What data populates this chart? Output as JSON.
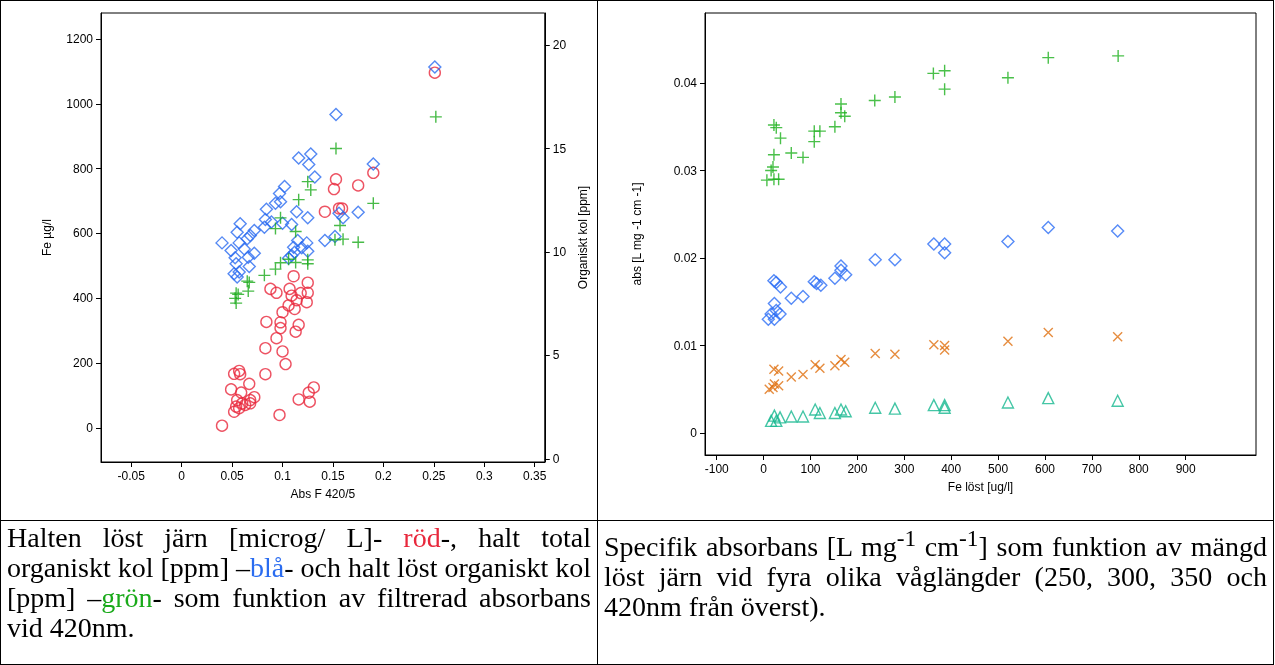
{
  "chart_data": [
    {
      "type": "scatter",
      "xlabel": "Abs F 420/5",
      "ylabel": "Fe µg/l",
      "y2label": "Organiskt kol [ppm]",
      "xlim": [
        -0.08,
        0.36
      ],
      "xticks": [
        -0.05,
        0,
        0.05,
        0.1,
        0.15,
        0.2,
        0.25,
        0.3,
        0.35
      ],
      "ylim": [
        -105,
        1280
      ],
      "yticks": [
        0,
        200,
        400,
        600,
        800,
        1000,
        1200
      ],
      "y2lim": [
        -0.15,
        21.55
      ],
      "y2ticks": [
        0,
        5,
        10,
        15,
        20
      ],
      "grid": false,
      "series": [
        {
          "color": "#e8283c",
          "marker": "circle",
          "x": [
            0.251,
            0.153,
            0.151,
            0.175,
            0.19,
            0.142,
            0.156,
            0.159,
            0.111,
            0.088,
            0.094,
            0.107,
            0.125,
            0.109,
            0.118,
            0.125,
            0.114,
            0.106,
            0.112,
            0.124,
            0.1,
            0.084,
            0.098,
            0.098,
            0.116,
            0.113,
            0.094,
            0.083,
            0.1,
            0.103,
            0.083,
            0.057,
            0.052,
            0.058,
            0.067,
            0.049,
            0.059,
            0.072,
            0.068,
            0.055,
            0.06,
            0.054,
            0.063,
            0.052,
            0.057,
            0.068,
            0.131,
            0.126,
            0.116,
            0.127,
            0.097,
            0.04
          ],
          "values": [
            1096,
            767,
            737,
            748,
            787,
            667,
            677,
            677,
            468,
            429,
            417,
            429,
            448,
            408,
            416,
            417,
            394,
            378,
            367,
            388,
            357,
            327,
            326,
            308,
            318,
            297,
            277,
            246,
            236,
            197,
            166,
            176,
            167,
            166,
            136,
            119,
            109,
            95,
            86,
            86,
            76,
            66,
            71,
            50,
            61,
            76,
            125,
            109,
            88,
            81,
            40,
            7
          ]
        },
        {
          "color": "#2a6cf0",
          "marker": "diamond",
          "axis": "y2",
          "x": [
            0.251,
            0.153,
            0.116,
            0.128,
            0.126,
            0.19,
            0.132,
            0.102,
            0.097,
            0.098,
            0.093,
            0.084,
            0.114,
            0.175,
            0.156,
            0.16,
            0.125,
            0.083,
            0.089,
            0.1,
            0.109,
            0.082,
            0.058,
            0.055,
            0.072,
            0.068,
            0.065,
            0.04,
            0.057,
            0.049,
            0.062,
            0.072,
            0.053,
            0.066,
            0.067,
            0.054,
            0.052,
            0.057,
            0.055,
            0.115,
            0.124,
            0.111,
            0.119,
            0.125,
            0.112,
            0.109,
            0.106,
            0.142,
            0.152
          ],
          "values": [
            18.94,
            16.64,
            14.54,
            14.73,
            14.23,
            14.25,
            13.62,
            13.16,
            12.83,
            12.43,
            12.35,
            12.06,
            11.94,
            11.92,
            11.87,
            11.65,
            11.65,
            11.57,
            11.45,
            11.39,
            11.33,
            11.2,
            11.36,
            10.95,
            11.04,
            10.8,
            10.64,
            10.44,
            10.44,
            10.07,
            10.15,
            9.94,
            9.72,
            9.75,
            9.3,
            9.43,
            8.95,
            9.03,
            8.79,
            10.55,
            10.44,
            10.23,
            10.2,
            10.04,
            9.99,
            9.83,
            9.7,
            10.55,
            10.75
          ]
        },
        {
          "color": "#1aaa1a",
          "marker": "plus",
          "axis": "y2",
          "x": [
            0.252,
            0.153,
            0.125,
            0.128,
            0.116,
            0.19,
            0.098,
            0.093,
            0.113,
            0.157,
            0.152,
            0.16,
            0.175,
            0.125,
            0.125,
            0.113,
            0.098,
            0.093,
            0.082,
            0.065,
            0.067,
            0.066,
            0.054,
            0.056,
            0.053,
            0.054,
            0.106
          ],
          "values": [
            16.53,
            15.0,
            13.4,
            13.0,
            12.53,
            12.35,
            11.65,
            11.13,
            10.99,
            11.28,
            10.59,
            10.62,
            10.47,
            9.62,
            9.43,
            9.49,
            9.48,
            9.17,
            8.87,
            8.59,
            8.53,
            8.11,
            8.01,
            7.95,
            7.76,
            7.53,
            9.65
          ]
        }
      ],
      "annotations": [
        "Halten löst järn [microg/ L]- ",
        "röd",
        "-, halt total organiskt kol [ppm] –",
        "blå",
        "- och halt löst organiskt kol [ppm] –",
        "grön",
        "- som funktion av filtrerad absorbans vid 420nm."
      ]
    },
    {
      "type": "scatter",
      "xlabel": "Fe löst [ug/l]",
      "ylabel": "abs [L mg -1 cm -1]",
      "xlim": [
        -125,
        1050
      ],
      "xticks": [
        -100,
        0,
        100,
        200,
        300,
        400,
        500,
        600,
        700,
        800,
        900
      ],
      "ylim": [
        -0.0025,
        0.048
      ],
      "yticks": [
        0,
        0.01,
        0.02,
        0.03,
        0.04
      ],
      "grid": false,
      "series": [
        {
          "color": "#1db01d",
          "marker": "plus",
          "x": [
            22,
            27,
            36,
            22,
            59,
            84,
            108,
            108,
            120,
            152,
            165,
            165,
            173,
            237,
            280,
            362,
            386,
            386,
            521,
            607,
            756,
            16,
            20,
            22,
            7,
            32
          ],
          "values": [
            0.0352,
            0.0349,
            0.0337,
            0.0318,
            0.032,
            0.0315,
            0.0333,
            0.0345,
            0.0345,
            0.035,
            0.0376,
            0.0366,
            0.0362,
            0.038,
            0.0384,
            0.0411,
            0.0414,
            0.0393,
            0.0406,
            0.0429,
            0.0431,
            0.03,
            0.0304,
            0.029,
            0.0289,
            0.029
          ]
        },
        {
          "color": "#2d6ef5",
          "marker": "diamond",
          "x": [
            22,
            27,
            36,
            23,
            59,
            84,
            108,
            113,
            122,
            152,
            165,
            165,
            175,
            238,
            280,
            363,
            386,
            386,
            521,
            607,
            755,
            10,
            23,
            16,
            27,
            35
          ],
          "values": [
            0.0174,
            0.0172,
            0.0167,
            0.0148,
            0.0154,
            0.0156,
            0.0173,
            0.0171,
            0.0169,
            0.0177,
            0.0191,
            0.0186,
            0.0181,
            0.0198,
            0.0198,
            0.0216,
            0.0216,
            0.0206,
            0.0219,
            0.0235,
            0.0231,
            0.013,
            0.013,
            0.0136,
            0.014,
            0.0136
          ]
        },
        {
          "color": "#e07010",
          "marker": "cross",
          "x": [
            22,
            32,
            12,
            23,
            32,
            20,
            59,
            84,
            110,
            120,
            152,
            165,
            173,
            238,
            280,
            363,
            386,
            386,
            521,
            607,
            755
          ],
          "values": [
            0.0073,
            0.0071,
            0.005,
            0.0056,
            0.0054,
            0.0052,
            0.0064,
            0.0067,
            0.0078,
            0.0074,
            0.0077,
            0.0084,
            0.0081,
            0.0091,
            0.009,
            0.0101,
            0.01,
            0.0095,
            0.0105,
            0.0115,
            0.011
          ]
        },
        {
          "color": "#17b890",
          "marker": "triangle",
          "x": [
            16,
            23,
            35,
            27,
            59,
            84,
            110,
            120,
            152,
            165,
            175,
            238,
            280,
            363,
            386,
            386,
            521,
            607,
            755
          ],
          "values": [
            0.0014,
            0.002,
            0.0018,
            0.0014,
            0.0019,
            0.0019,
            0.0027,
            0.0023,
            0.0023,
            0.0027,
            0.0025,
            0.0029,
            0.0028,
            0.0032,
            0.0032,
            0.0029,
            0.0035,
            0.004,
            0.0037
          ]
        }
      ],
      "annotations": [
        "Specifik absorbans [L  mg$^{-1}$ cm$^{-1}$] som funktion av mängd löst järn vid fyra olika våglängder (250, 300, 350 och 420nm från överst)."
      ]
    }
  ]
}
